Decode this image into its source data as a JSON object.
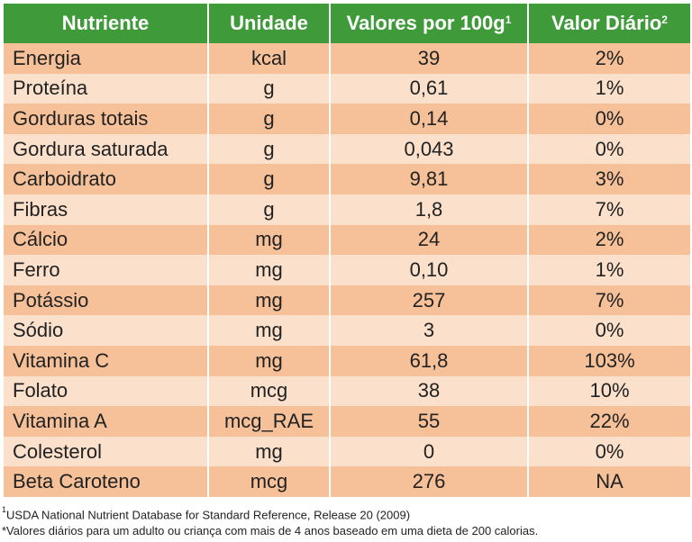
{
  "table": {
    "headers": {
      "nutriente": "Nutriente",
      "unidade": "Unidade",
      "valores": "Valores por 100g",
      "valores_sup": "1",
      "valor_diario": "Valor Diário",
      "valor_diario_sup": "2"
    },
    "rows": [
      {
        "nutriente": "Energia",
        "unidade": "kcal",
        "valor": "39",
        "vd": "2%"
      },
      {
        "nutriente": "Proteína",
        "unidade": "g",
        "valor": "0,61",
        "vd": "1%"
      },
      {
        "nutriente": "Gorduras totais",
        "unidade": "g",
        "valor": "0,14",
        "vd": "0%"
      },
      {
        "nutriente": "Gordura saturada",
        "unidade": "g",
        "valor": "0,043",
        "vd": "0%"
      },
      {
        "nutriente": "Carboidrato",
        "unidade": "g",
        "valor": "9,81",
        "vd": "3%"
      },
      {
        "nutriente": "Fibras",
        "unidade": "g",
        "valor": "1,8",
        "vd": "7%"
      },
      {
        "nutriente": "Cálcio",
        "unidade": "mg",
        "valor": "24",
        "vd": "2%"
      },
      {
        "nutriente": "Ferro",
        "unidade": "mg",
        "valor": "0,10",
        "vd": "1%"
      },
      {
        "nutriente": "Potássio",
        "unidade": "mg",
        "valor": "257",
        "vd": "7%"
      },
      {
        "nutriente": "Sódio",
        "unidade": "mg",
        "valor": "3",
        "vd": "0%"
      },
      {
        "nutriente": "Vitamina C",
        "unidade": "mg",
        "valor": "61,8",
        "vd": "103%"
      },
      {
        "nutriente": "Folato",
        "unidade": "mcg",
        "valor": "38",
        "vd": "10%"
      },
      {
        "nutriente": "Vitamina A",
        "unidade": "mcg_RAE",
        "valor": "55",
        "vd": "22%"
      },
      {
        "nutriente": "Colesterol",
        "unidade": "mg",
        "valor": "0",
        "vd": "0%"
      },
      {
        "nutriente": "Beta Caroteno",
        "unidade": "mcg",
        "valor": "276",
        "vd": "NA"
      }
    ]
  },
  "footnotes": {
    "note1_sup": "1",
    "note1": "USDA National Nutrient Database for Standard Reference, Release 20 (2009)",
    "note2": "*Valores diários para um adulto ou criança com mais de 4 anos baseado em uma dieta de 200 calorias."
  },
  "colors": {
    "header_bg": "#3f9a3a",
    "row_dark": "#f6c199",
    "row_light": "#fbe0cb"
  }
}
